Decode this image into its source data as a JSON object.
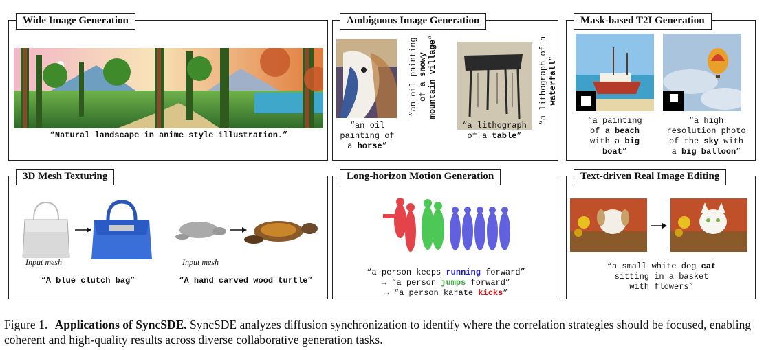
{
  "panels": {
    "wide": {
      "title": "Wide Image Generation",
      "caption": "“Natural landscape in anime style illustration.”"
    },
    "ambiguous": {
      "title": "Ambiguous Image Generation",
      "horse_caption_1": "“an oil",
      "horse_caption_2": "painting of",
      "horse_caption_3_pre": "a ",
      "horse_caption_3_bold": "horse",
      "horse_caption_3_post": "”",
      "vert_1_line1": "“an oil painting",
      "vert_1_line2_pre": "of a ",
      "vert_1_line2_bold": "snowy",
      "vert_1_line3_bold": "mountain village",
      "vert_1_line3_post": "”",
      "table_caption_1": "“a lithograph",
      "table_caption_2_pre": "of a ",
      "table_caption_2_bold": "table",
      "table_caption_2_post": "”",
      "vert_2_line1": "“a lithograph of a",
      "vert_2_line2_bold": "waterfall",
      "vert_2_line2_post": "”"
    },
    "mask": {
      "title": "Mask-based T2I Generation",
      "boat_l1": "“a painting",
      "boat_l2_pre": "of a ",
      "boat_l2_bold": "beach",
      "boat_l3_pre": "with a ",
      "boat_l3_bold": "big",
      "boat_l4_bold": "boat",
      "boat_l4_post": "”",
      "balloon_l1": "“a high",
      "balloon_l2": "resolution photo",
      "balloon_l3_pre": "of the ",
      "balloon_l3_bold": "sky",
      "balloon_l3_post": " with",
      "balloon_l4_pre": "a ",
      "balloon_l4_bold": "big balloon",
      "balloon_l4_post": "”"
    },
    "mesh": {
      "title": "3D Mesh Texturing",
      "input_label_1": "Input mesh",
      "input_label_2": "Input mesh",
      "caption_1": "“A blue clutch bag”",
      "caption_2": "“A hand carved wood turtle”"
    },
    "motion": {
      "title": "Long-horizon Motion Generation",
      "l1_pre": "“a person keeps ",
      "l1_color": "running",
      "l1_post": " forward”",
      "l2_pre": "→ “a person ",
      "l2_color": "jumps",
      "l2_post": " forward”",
      "l3_pre": "→ “a person karate ",
      "l3_color": "kicks",
      "l3_post": "”",
      "colors": {
        "running": "#1f1fd0",
        "jumps": "#3aa83a",
        "kicks": "#e01010"
      }
    },
    "editing": {
      "title": "Text-driven Real Image Editing",
      "l1_pre": "“a small white ",
      "l1_strike": "dog",
      "l1_bold": "cat",
      "l2": "sitting in a basket",
      "l3": "with flowers”"
    }
  },
  "figure_caption": {
    "label": "Figure 1.",
    "bold": "Applications of SyncSDE.",
    "text": " SyncSDE analyzes diffusion synchronization to identify where the correlation strategies should be focused, enabling coherent and high-quality results across diverse collaborative generation tasks."
  }
}
